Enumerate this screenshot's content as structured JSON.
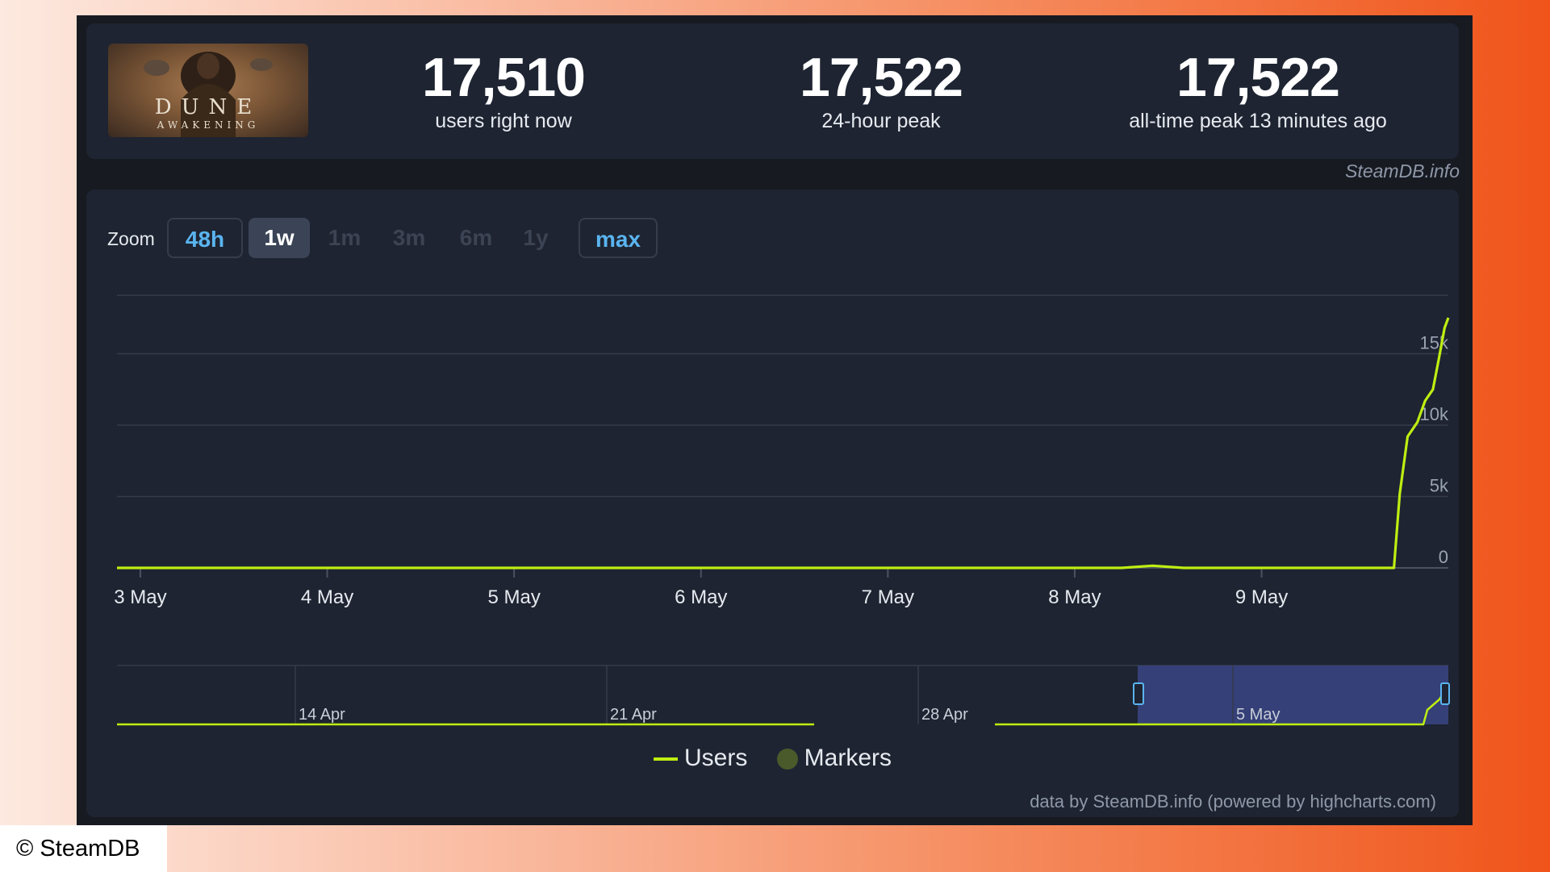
{
  "game": {
    "logo_title": "DUNE",
    "logo_subtitle": "AWAKENING"
  },
  "stats": [
    {
      "value": "17,510",
      "label": "users right now"
    },
    {
      "value": "17,522",
      "label": "24-hour peak"
    },
    {
      "value": "17,522",
      "label": "all-time peak 13 minutes ago"
    }
  ],
  "attribution": "SteamDB.info",
  "zoom": {
    "label": "Zoom",
    "options": [
      "48h",
      "1w",
      "1m",
      "3m",
      "6m",
      "1y",
      "max"
    ],
    "selected": "1w"
  },
  "chart_data": {
    "type": "line",
    "title": "",
    "xlabel": "",
    "ylabel": "",
    "x_ticks": [
      "3 May",
      "4 May",
      "5 May",
      "6 May",
      "7 May",
      "8 May",
      "9 May"
    ],
    "y_ticks": [
      "0",
      "5k",
      "10k",
      "15k"
    ],
    "ylim": [
      0,
      20000
    ],
    "grid": true,
    "series": [
      {
        "name": "Users",
        "color": "#beee11",
        "points": [
          [
            "2025-05-02 21:00",
            0
          ],
          [
            "2025-05-03 12:00",
            0
          ],
          [
            "2025-05-04 12:00",
            0
          ],
          [
            "2025-05-05 12:00",
            0
          ],
          [
            "2025-05-06 12:00",
            0
          ],
          [
            "2025-05-06 17:00",
            0
          ],
          [
            "2025-05-07 12:00",
            0
          ],
          [
            "2025-05-08 06:00",
            0
          ],
          [
            "2025-05-08 10:00",
            150
          ],
          [
            "2025-05-08 14:00",
            0
          ],
          [
            "2025-05-09 12:00",
            0
          ],
          [
            "2025-05-09 17:00",
            0
          ],
          [
            "2025-05-09 17:45",
            5200
          ],
          [
            "2025-05-09 18:45",
            9200
          ],
          [
            "2025-05-09 20:00",
            10200
          ],
          [
            "2025-05-09 21:00",
            11700
          ],
          [
            "2025-05-09 22:00",
            12500
          ],
          [
            "2025-05-09 22:45",
            14600
          ],
          [
            "2025-05-09 23:30",
            16800
          ],
          [
            "2025-05-09 23:59",
            17522
          ]
        ]
      }
    ],
    "navigator": {
      "x_ticks": [
        "14 Apr",
        "21 Apr",
        "28 Apr",
        "5 May"
      ],
      "selected_range": [
        "3 May",
        "9 May"
      ]
    },
    "legend": {
      "position": "bottom-center",
      "items": [
        "Users",
        "Markers"
      ]
    }
  },
  "credits": "data by SteamDB.info (powered by highcharts.com)",
  "copyright": "© SteamDB"
}
